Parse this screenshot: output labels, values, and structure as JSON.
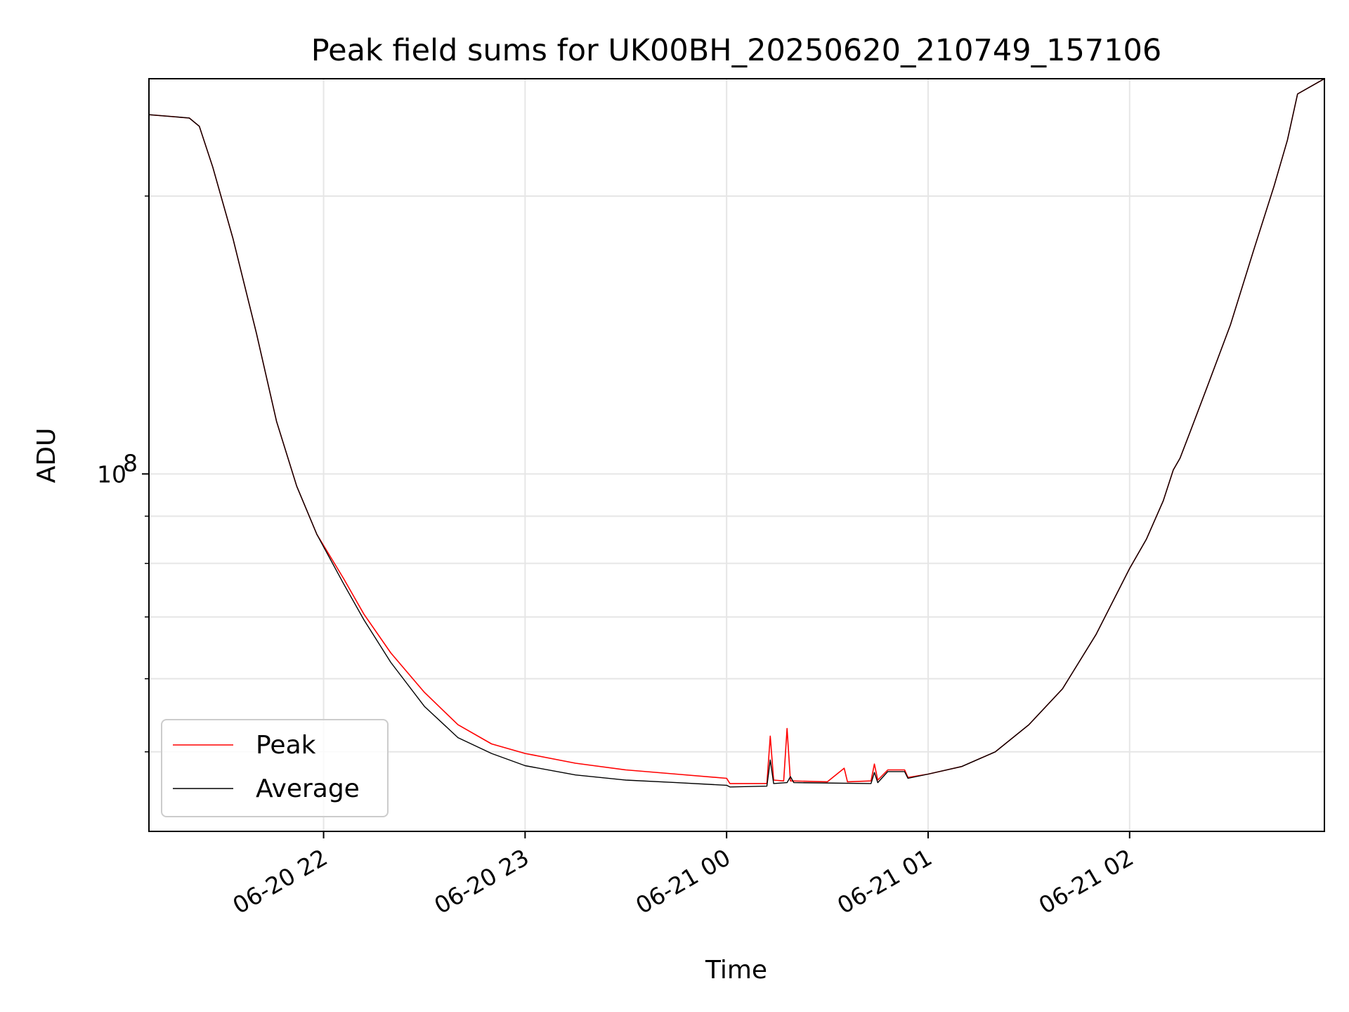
{
  "chart_data": {
    "type": "line",
    "title": "Peak field sums for UK00BH_20250620_210749_157106",
    "xlabel": "Time",
    "ylabel": "ADU",
    "x_range": [
      "2025-06-20 21:08",
      "2025-06-21 02:58"
    ],
    "y_scale": "log",
    "ylim": [
      41000000,
      268000000
    ],
    "x_ticks": [
      {
        "t": "2025-06-20 22:00",
        "label": "06-20 22"
      },
      {
        "t": "2025-06-20 23:00",
        "label": "06-20 23"
      },
      {
        "t": "2025-06-21 00:00",
        "label": "06-21 00"
      },
      {
        "t": "2025-06-21 01:00",
        "label": "06-21 01"
      },
      {
        "t": "2025-06-21 02:00",
        "label": "06-21 02"
      }
    ],
    "y_major_ticks": [
      {
        "value": 100000000,
        "label_base": "10",
        "label_exp": "8"
      }
    ],
    "y_minor_ticks": [
      50000000,
      60000000,
      70000000,
      80000000,
      90000000,
      200000000
    ],
    "grid": true,
    "legend_position": "lower-left",
    "series": [
      {
        "name": "Peak",
        "color": "#ff0000",
        "points": [
          [
            "2025-06-20 21:08",
            245000000
          ],
          [
            "2025-06-20 21:20",
            243000000
          ],
          [
            "2025-06-20 21:23",
            238000000
          ],
          [
            "2025-06-20 21:27",
            215000000
          ],
          [
            "2025-06-20 21:33",
            180000000
          ],
          [
            "2025-06-20 21:40",
            142000000
          ],
          [
            "2025-06-20 21:46",
            114000000
          ],
          [
            "2025-06-20 21:52",
            97000000
          ],
          [
            "2025-06-20 21:58",
            86000000
          ],
          [
            "2025-06-20 22:06",
            77000000
          ],
          [
            "2025-06-20 22:12",
            70500000
          ],
          [
            "2025-06-20 22:20",
            64000000
          ],
          [
            "2025-06-20 22:30",
            58000000
          ],
          [
            "2025-06-20 22:40",
            53500000
          ],
          [
            "2025-06-20 22:50",
            51000000
          ],
          [
            "2025-06-20 23:00",
            49800000
          ],
          [
            "2025-06-20 23:15",
            48600000
          ],
          [
            "2025-06-20 23:30",
            47800000
          ],
          [
            "2025-06-20 23:45",
            47300000
          ],
          [
            "2025-06-21 00:00",
            46800000
          ],
          [
            "2025-06-21 00:01",
            46200000
          ],
          [
            "2025-06-21 00:12",
            46200000
          ],
          [
            "2025-06-21 00:13",
            52000000
          ],
          [
            "2025-06-21 00:14",
            46600000
          ],
          [
            "2025-06-21 00:17",
            46500000
          ],
          [
            "2025-06-21 00:18",
            53000000
          ],
          [
            "2025-06-21 00:19",
            46500000
          ],
          [
            "2025-06-21 00:30",
            46400000
          ],
          [
            "2025-06-21 00:35",
            48000000
          ],
          [
            "2025-06-21 00:36",
            46400000
          ],
          [
            "2025-06-21 00:43",
            46500000
          ],
          [
            "2025-06-21 00:44",
            48500000
          ],
          [
            "2025-06-21 00:45",
            46600000
          ],
          [
            "2025-06-21 00:48",
            47800000
          ],
          [
            "2025-06-21 00:53",
            47800000
          ],
          [
            "2025-06-21 00:54",
            46900000
          ],
          [
            "2025-06-21 01:00",
            47300000
          ],
          [
            "2025-06-21 01:10",
            48200000
          ],
          [
            "2025-06-21 01:20",
            50000000
          ],
          [
            "2025-06-21 01:30",
            53500000
          ],
          [
            "2025-06-21 01:40",
            58500000
          ],
          [
            "2025-06-21 01:50",
            67000000
          ],
          [
            "2025-06-21 02:00",
            79000000
          ],
          [
            "2025-06-21 02:05",
            85000000
          ],
          [
            "2025-06-21 02:10",
            93500000
          ],
          [
            "2025-06-21 02:13",
            101000000
          ],
          [
            "2025-06-21 02:15",
            104000000
          ],
          [
            "2025-06-21 02:18",
            111000000
          ],
          [
            "2025-06-21 02:23",
            124000000
          ],
          [
            "2025-06-21 02:30",
            145000000
          ],
          [
            "2025-06-21 02:37",
            175000000
          ],
          [
            "2025-06-21 02:43",
            205000000
          ],
          [
            "2025-06-21 02:47",
            230000000
          ],
          [
            "2025-06-21 02:50",
            258000000
          ],
          [
            "2025-06-21 02:58",
            268000000
          ]
        ]
      },
      {
        "name": "Average",
        "color": "#000000",
        "points": [
          [
            "2025-06-20 21:08",
            245000000
          ],
          [
            "2025-06-20 21:20",
            243000000
          ],
          [
            "2025-06-20 21:23",
            238000000
          ],
          [
            "2025-06-20 21:27",
            215000000
          ],
          [
            "2025-06-20 21:33",
            180000000
          ],
          [
            "2025-06-20 21:40",
            142000000
          ],
          [
            "2025-06-20 21:46",
            114000000
          ],
          [
            "2025-06-20 21:52",
            97000000
          ],
          [
            "2025-06-20 21:58",
            86000000
          ],
          [
            "2025-06-20 22:06",
            76000000
          ],
          [
            "2025-06-20 22:12",
            69500000
          ],
          [
            "2025-06-20 22:20",
            62500000
          ],
          [
            "2025-06-20 22:30",
            56000000
          ],
          [
            "2025-06-20 22:40",
            51800000
          ],
          [
            "2025-06-20 22:50",
            49800000
          ],
          [
            "2025-06-20 23:00",
            48300000
          ],
          [
            "2025-06-20 23:15",
            47200000
          ],
          [
            "2025-06-20 23:30",
            46600000
          ],
          [
            "2025-06-20 23:45",
            46300000
          ],
          [
            "2025-06-21 00:00",
            46000000
          ],
          [
            "2025-06-21 00:01",
            45800000
          ],
          [
            "2025-06-21 00:12",
            45900000
          ],
          [
            "2025-06-21 00:13",
            49000000
          ],
          [
            "2025-06-21 00:14",
            46200000
          ],
          [
            "2025-06-21 00:18",
            46300000
          ],
          [
            "2025-06-21 00:19",
            47000000
          ],
          [
            "2025-06-21 00:20",
            46300000
          ],
          [
            "2025-06-21 00:43",
            46200000
          ],
          [
            "2025-06-21 00:44",
            47500000
          ],
          [
            "2025-06-21 00:45",
            46300000
          ],
          [
            "2025-06-21 00:48",
            47600000
          ],
          [
            "2025-06-21 00:53",
            47600000
          ],
          [
            "2025-06-21 00:54",
            46800000
          ],
          [
            "2025-06-21 01:00",
            47300000
          ],
          [
            "2025-06-21 01:10",
            48200000
          ],
          [
            "2025-06-21 01:20",
            50000000
          ],
          [
            "2025-06-21 01:30",
            53500000
          ],
          [
            "2025-06-21 01:40",
            58500000
          ],
          [
            "2025-06-21 01:50",
            67000000
          ],
          [
            "2025-06-21 02:00",
            79000000
          ],
          [
            "2025-06-21 02:05",
            85000000
          ],
          [
            "2025-06-21 02:10",
            93500000
          ],
          [
            "2025-06-21 02:13",
            101000000
          ],
          [
            "2025-06-21 02:15",
            104000000
          ],
          [
            "2025-06-21 02:18",
            111000000
          ],
          [
            "2025-06-21 02:23",
            124000000
          ],
          [
            "2025-06-21 02:30",
            145000000
          ],
          [
            "2025-06-21 02:37",
            175000000
          ],
          [
            "2025-06-21 02:43",
            205000000
          ],
          [
            "2025-06-21 02:47",
            230000000
          ],
          [
            "2025-06-21 02:50",
            258000000
          ],
          [
            "2025-06-21 02:58",
            268000000
          ]
        ]
      }
    ]
  }
}
